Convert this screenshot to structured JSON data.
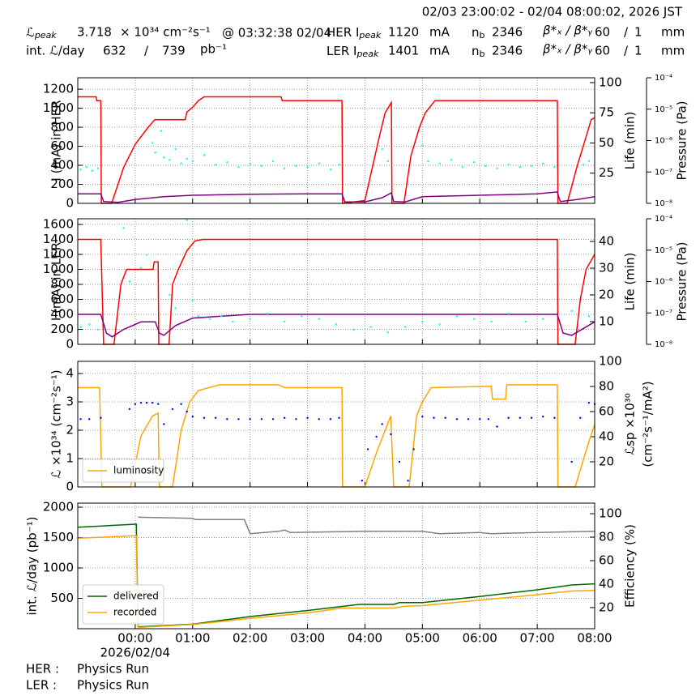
{
  "header": {
    "range": "02/03 23:00:02 - 02/04 08:00:02, 2026 JST",
    "lum_symbol": "ℒ",
    "peak_sub": "peak",
    "lpeak": 3.718,
    "lpeak_unit": "× 10³⁴ cm⁻²s⁻¹",
    "lpeak_time": "@ 03:32:38 02/04",
    "int_label": "int. ℒ/day",
    "int_recorded": 632,
    "int_sep": "/",
    "int_delivered": 739,
    "int_unit": "pb⁻¹",
    "rows": [
      {
        "ring": "HER I",
        "ipeak": 1120,
        "unit": "mA",
        "nb_label": "n",
        "nb_sub": "b",
        "nb": 2346,
        "beta_label": "β*ₓ / β*ᵧ",
        "beta_x": 60,
        "beta_sep": "/",
        "beta_y": 1,
        "beta_unit": "mm"
      },
      {
        "ring": "LER I",
        "ipeak": 1401,
        "unit": "mA",
        "nb_label": "n",
        "nb_sub": "b",
        "nb": 2346,
        "beta_label": "β*ₓ / β*ᵧ",
        "beta_x": 60,
        "beta_sep": "/",
        "beta_y": 1,
        "beta_unit": "mm"
      }
    ]
  },
  "chart_data": {
    "type": "line",
    "xlim": [
      -1,
      8
    ],
    "xticks": [
      {
        "value": 0,
        "label": "00:00"
      },
      {
        "value": 1,
        "label": "01:00"
      },
      {
        "value": 2,
        "label": "02:00"
      },
      {
        "value": 3,
        "label": "03:00"
      },
      {
        "value": 4,
        "label": "04:00"
      },
      {
        "value": 5,
        "label": "05:00"
      },
      {
        "value": 6,
        "label": "06:00"
      },
      {
        "value": 7,
        "label": "07:00"
      },
      {
        "value": 8,
        "label": "08:00"
      }
    ],
    "x_date_label": "2026/02/04",
    "grid": true,
    "panels": [
      {
        "ylabel": "I (mA) in HER",
        "y2label": [
          "Life (min)"
        ],
        "y3label": "Pressure (Pa)",
        "ylim": [
          0,
          1320
        ],
        "yticks": [
          0,
          200,
          400,
          600,
          800,
          1000,
          1200
        ],
        "y2lim": [
          0,
          104
        ],
        "y2ticks": [
          25,
          50,
          75,
          100
        ],
        "y3lim": [
          1e-08,
          0.0001
        ],
        "y3log": true,
        "y3ticks": [
          {
            "value": 1e-08,
            "label": "10⁻⁸"
          },
          {
            "value": 1e-07,
            "label": "10⁻⁷"
          },
          {
            "value": 1e-06,
            "label": "10⁻⁶"
          },
          {
            "value": 1e-05,
            "label": "10⁻⁵"
          },
          {
            "value": 0.0001,
            "label": "10⁻⁴"
          }
        ],
        "series": [
          {
            "type": "line",
            "color": "#ff0000",
            "x": [
              -1,
              -0.68,
              -0.67,
              -0.6,
              -0.59,
              -0.41,
              -0.2,
              0,
              0.2,
              0.34,
              0.87,
              0.9,
              1.0,
              1.1,
              1.2,
              2.54,
              2.56,
              3.6,
              3.61,
              4.0,
              4.1,
              4.25,
              4.35,
              4.46,
              4.47,
              4.68,
              4.8,
              4.95,
              5.05,
              5.22,
              7.35,
              7.36,
              7.52,
              7.7,
              7.85,
              7.94,
              8.0
            ],
            "values": [
              1120,
              1120,
              1080,
              1080,
              0,
              0,
              380,
              620,
              780,
              880,
              880,
              960,
              1010,
              1080,
              1120,
              1120,
              1080,
              1080,
              0,
              30,
              300,
              700,
              950,
              1060,
              0,
              0,
              500,
              800,
              950,
              1080,
              1080,
              0,
              0,
              400,
              700,
              880,
              900
            ]
          },
          {
            "type": "line",
            "color": "#800080",
            "x": [
              -1,
              -0.6,
              -0.55,
              -0.3,
              0,
              0.5,
              1,
              2,
              3,
              3.6,
              3.65,
              4.0,
              4.3,
              4.46,
              4.5,
              4.7,
              5.0,
              6,
              7,
              7.35,
              7.4,
              7.7,
              8
            ],
            "values": [
              100,
              100,
              20,
              10,
              40,
              70,
              85,
              95,
              100,
              100,
              15,
              15,
              60,
              110,
              20,
              15,
              70,
              85,
              100,
              120,
              20,
              40,
              70
            ]
          },
          {
            "type": "scatter",
            "color": "#00ffff",
            "axis": "y2",
            "x": [
              -0.95,
              -0.85,
              -0.75,
              -0.65,
              0.3,
              0.35,
              0.45,
              0.5,
              0.6,
              0.7,
              0.8,
              0.9,
              1.0,
              1.2,
              1.4,
              1.6,
              1.8,
              2.0,
              2.2,
              2.4,
              2.6,
              2.8,
              3.0,
              3.2,
              3.4,
              3.55,
              4.3,
              4.4,
              5.0,
              5.1,
              5.3,
              5.5,
              5.7,
              5.9,
              6.1,
              6.3,
              6.5,
              6.7,
              6.9,
              7.1,
              7.3,
              7.8,
              7.9
            ],
            "values": [
              28,
              30,
              27,
              29,
              50,
              42,
              60,
              38,
              36,
              45,
              33,
              37,
              35,
              40,
              32,
              34,
              30,
              33,
              31,
              35,
              29,
              31,
              30,
              33,
              28,
              32,
              45,
              35,
              48,
              35,
              33,
              36,
              30,
              34,
              31,
              29,
              32,
              30,
              31,
              33,
              30,
              32,
              35
            ]
          }
        ]
      },
      {
        "ylabel": "I (mA) in LER",
        "y2label": [
          "Life (min)"
        ],
        "y3label": "Pressure (Pa)",
        "ylim": [
          0,
          1676
        ],
        "yticks": [
          0,
          200,
          400,
          600,
          800,
          1000,
          1200,
          1400,
          1600
        ],
        "y2lim": [
          1.5,
          48.5
        ],
        "y2ticks": [
          10,
          20,
          30,
          40
        ],
        "y3lim": [
          1e-08,
          0.0001
        ],
        "y3log": true,
        "y3ticks": [
          {
            "value": 1e-08,
            "label": "10⁻⁸"
          },
          {
            "value": 1e-07,
            "label": "10⁻⁷"
          },
          {
            "value": 1e-06,
            "label": "10⁻⁶"
          },
          {
            "value": 1e-05,
            "label": "10⁻⁵"
          },
          {
            "value": 0.0001,
            "label": "10⁻⁴"
          }
        ],
        "series": [
          {
            "type": "line",
            "color": "#ff0000",
            "x": [
              -1,
              -0.6,
              -0.55,
              -0.37,
              -0.25,
              -0.15,
              0.31,
              0.33,
              0.4,
              0.41,
              0.59,
              0.65,
              0.75,
              0.9,
              1.04,
              1.18,
              7.35,
              7.36,
              7.66,
              7.75,
              7.85,
              8.0
            ],
            "values": [
              1400,
              1400,
              0,
              0,
              800,
              1000,
              1000,
              1100,
              1100,
              0,
              0,
              800,
              1000,
              1250,
              1380,
              1400,
              1400,
              0,
              0,
              600,
              1000,
              1200
            ]
          },
          {
            "type": "line",
            "color": "#800080",
            "x": [
              -1,
              -0.6,
              -0.5,
              -0.4,
              -0.2,
              0.1,
              0.35,
              0.42,
              0.5,
              0.7,
              1.0,
              2.0,
              7.35,
              7.45,
              7.6,
              8.0
            ],
            "values": [
              400,
              400,
              150,
              100,
              200,
              300,
              300,
              150,
              120,
              250,
              350,
              400,
              400,
              150,
              120,
              300
            ]
          },
          {
            "type": "scatter",
            "color": "#00ffff",
            "axis": "y2",
            "x": [
              -0.95,
              -0.8,
              -0.65,
              -0.2,
              -0.1,
              0.1,
              0.2,
              0.6,
              0.7,
              0.9,
              1.0,
              1.1,
              1.3,
              1.5,
              1.7,
              2.0,
              2.3,
              2.6,
              2.9,
              3.2,
              3.5,
              3.8,
              4.1,
              4.4,
              4.7,
              5.0,
              5.3,
              5.6,
              5.9,
              6.2,
              6.5,
              6.8,
              7.1,
              7.6,
              7.9
            ],
            "values": [
              8,
              9,
              7,
              45,
              25,
              30,
              35,
              20,
              15,
              48,
              18,
              12,
              11,
              12,
              10,
              11,
              13,
              10,
              12,
              11,
              9,
              7,
              8,
              6,
              8,
              10,
              9,
              12,
              11,
              10,
              13,
              10,
              11,
              14,
              12
            ]
          }
        ]
      },
      {
        "ylabel": "ℒ ×10³⁴ (cm⁻²s⁻¹)",
        "y2label": [
          "ℒsp ×10³⁰",
          "(cm⁻²s⁻¹/mA²)"
        ],
        "ylim": [
          0,
          4.43
        ],
        "yticks": [
          0,
          1,
          2,
          3,
          4
        ],
        "y2lim": [
          0,
          100
        ],
        "y2ticks": [
          20,
          40,
          60,
          80,
          100
        ],
        "legend": "lower left",
        "series": [
          {
            "type": "line",
            "name": "luminosity",
            "color": "#ffa500",
            "x": [
              -1,
              -0.62,
              -0.58,
              -0.08,
              0.1,
              0.3,
              0.4,
              0.42,
              0.65,
              0.8,
              0.95,
              1.1,
              1.46,
              2.5,
              2.6,
              3.6,
              3.61,
              4.0,
              4.2,
              4.45,
              4.5,
              4.77,
              4.9,
              5.0,
              5.15,
              6.2,
              6.22,
              6.45,
              6.47,
              7.35,
              7.36,
              7.66,
              7.9,
              8.0
            ],
            "values": [
              3.5,
              3.5,
              0,
              0,
              1.8,
              2.5,
              2.6,
              0,
              0,
              2.0,
              3.0,
              3.4,
              3.6,
              3.6,
              3.5,
              3.5,
              0,
              0,
              1.2,
              2.5,
              0,
              0,
              2.5,
              3.0,
              3.5,
              3.55,
              3.1,
              3.1,
              3.6,
              3.6,
              0,
              0,
              1.6,
              2.2
            ]
          },
          {
            "type": "scatter",
            "color": "#0000ff",
            "axis": "y2",
            "x": [
              -0.95,
              -0.8,
              -0.6,
              -0.1,
              0,
              0.1,
              0.2,
              0.3,
              0.4,
              0.5,
              0.65,
              0.8,
              0.9,
              1.0,
              1.2,
              1.4,
              1.6,
              1.8,
              2.0,
              2.2,
              2.4,
              2.6,
              2.8,
              3.0,
              3.2,
              3.4,
              3.55,
              3.95,
              4.05,
              4.2,
              4.3,
              4.45,
              4.6,
              4.75,
              4.85,
              5.0,
              5.2,
              5.4,
              5.6,
              5.8,
              6.0,
              6.15,
              6.3,
              6.5,
              6.7,
              6.9,
              7.1,
              7.3,
              7.6,
              7.75,
              7.9,
              8.0
            ],
            "values": [
              54,
              54,
              55,
              62,
              66,
              67,
              67,
              67,
              66,
              50,
              62,
              66,
              60,
              56,
              55,
              55,
              54,
              54,
              54,
              54,
              54,
              55,
              54,
              55,
              54,
              54,
              55,
              5,
              30,
              40,
              50,
              42,
              20,
              5,
              30,
              56,
              55,
              55,
              54,
              54,
              54,
              54,
              48,
              55,
              55,
              55,
              56,
              55,
              20,
              55,
              67,
              66
            ]
          }
        ]
      },
      {
        "ylabel": "int. ℒ/day (pb⁻¹)",
        "y2label": [
          "Efficiency (%)"
        ],
        "ylim": [
          0,
          2067
        ],
        "yticks": [
          500,
          1000,
          1500,
          2000
        ],
        "y2lim": [
          2,
          109
        ],
        "y2ticks": [
          20,
          40,
          60,
          80,
          100
        ],
        "legend": "lower left",
        "series": [
          {
            "type": "line",
            "name": "delivered",
            "color": "#006400",
            "x": [
              -1,
              0,
              0.02,
              0.05,
              1,
              2,
              3,
              3.9,
              4.5,
              4.6,
              5.0,
              6,
              7,
              7.6,
              8
            ],
            "values": [
              1670,
              1720,
              1720,
              30,
              75,
              200,
              300,
              400,
              400,
              430,
              430,
              530,
              640,
              720,
              739
            ]
          },
          {
            "type": "line",
            "name": "recorded",
            "color": "#ffa500",
            "x": [
              -1,
              0,
              0.02,
              0.05,
              1,
              2,
              3,
              3.6,
              4.5,
              4.7,
              5.0,
              6,
              7,
              7.6,
              8
            ],
            "values": [
              1490,
              1530,
              1530,
              20,
              70,
              170,
              260,
              340,
              340,
              370,
              380,
              470,
              560,
              620,
              632
            ]
          },
          {
            "type": "line",
            "color": "#808080",
            "axis": "y2",
            "x": [
              0.05,
              1,
              1.05,
              1.9,
              2.0,
              2.5,
              2.6,
              2.7,
              4,
              5.0,
              5.3,
              6,
              6.2,
              7,
              8
            ],
            "values": [
              97,
              96,
              95,
              95,
              83,
              85,
              86,
              84,
              85,
              85,
              83,
              84,
              83,
              84,
              85
            ]
          }
        ]
      }
    ]
  },
  "footer": {
    "rows": [
      {
        "ring": "HER :",
        "status": "Physics Run"
      },
      {
        "ring": "LER :",
        "status": "Physics Run"
      }
    ]
  }
}
